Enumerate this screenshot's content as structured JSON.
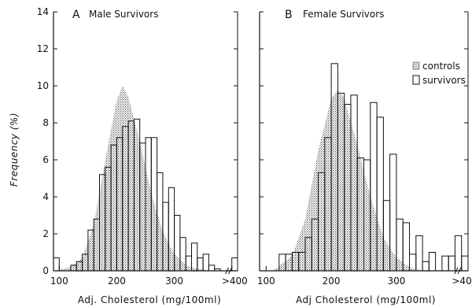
{
  "chart_data": [
    {
      "type": "bar",
      "panel_letter": "A",
      "title": "Male Survivors",
      "xlabel": "Adj. Cholesterol (mg/100ml)",
      "ylabel": "Frequency (%)",
      "ylim": [
        0,
        14
      ],
      "yticks": [
        "0",
        "2",
        "4",
        "6",
        "8",
        "10",
        "12",
        "14"
      ],
      "xticks": [
        "100",
        "200",
        "300",
        ">400"
      ],
      "xlim": [
        90,
        410
      ],
      "bin_width": 10,
      "series": [
        {
          "name": "survivors",
          "style": "open-bars",
          "x": [
            95,
            125,
            135,
            145,
            155,
            165,
            175,
            185,
            195,
            205,
            215,
            225,
            235,
            245,
            255,
            265,
            275,
            285,
            295,
            305,
            315,
            325,
            335,
            345,
            355,
            365,
            375,
            405
          ],
          "values": [
            0.7,
            0.3,
            0.5,
            0.9,
            2.2,
            2.8,
            5.2,
            5.6,
            6.8,
            7.2,
            7.8,
            8.1,
            8.2,
            6.9,
            7.2,
            7.2,
            5.3,
            3.7,
            4.5,
            3.0,
            1.8,
            0.8,
            1.5,
            0.7,
            0.9,
            0.3,
            0.1,
            0.7
          ]
        },
        {
          "name": "controls",
          "style": "stippled-area",
          "x": [
            90,
            120,
            140,
            160,
            180,
            200,
            210,
            220,
            240,
            260,
            280,
            300,
            320,
            340,
            370
          ],
          "values": [
            0,
            0.2,
            0.7,
            2.5,
            6.0,
            9.2,
            10.0,
            9.4,
            7.0,
            4.2,
            2.1,
            0.9,
            0.3,
            0.1,
            0
          ]
        }
      ]
    },
    {
      "type": "bar",
      "panel_letter": "B",
      "title": "Female Survivors",
      "xlabel": "Adj Cholesterol (mg/100ml)",
      "ylim": [
        0,
        14
      ],
      "xticks": [
        "100",
        "200",
        "300",
        ">400"
      ],
      "xlim": [
        90,
        410
      ],
      "bin_width": 10,
      "legend": [
        {
          "label": "controls",
          "style": "stippled"
        },
        {
          "label": "survivors",
          "style": "open"
        }
      ],
      "series": [
        {
          "name": "survivors",
          "style": "open-bars",
          "x": [
            125,
            135,
            145,
            155,
            165,
            175,
            185,
            195,
            205,
            215,
            225,
            235,
            245,
            255,
            265,
            275,
            285,
            295,
            305,
            315,
            325,
            335,
            345,
            355,
            375,
            385,
            395,
            405
          ],
          "values": [
            0.9,
            0.9,
            1.0,
            1.0,
            1.8,
            2.8,
            5.3,
            7.2,
            11.2,
            9.6,
            9.0,
            9.5,
            6.1,
            6.0,
            9.1,
            8.3,
            3.8,
            6.3,
            2.8,
            2.6,
            0.9,
            1.9,
            0.5,
            1.0,
            0.8,
            0.8,
            1.9,
            0.8
          ]
        },
        {
          "name": "controls",
          "style": "stippled-area",
          "x": [
            110,
            140,
            160,
            180,
            200,
            210,
            220,
            240,
            260,
            280,
            300,
            320,
            340
          ],
          "values": [
            0,
            0.8,
            2.8,
            6.5,
            9.3,
            9.8,
            9.3,
            6.8,
            4.0,
            1.8,
            0.7,
            0.2,
            0
          ]
        }
      ]
    }
  ]
}
